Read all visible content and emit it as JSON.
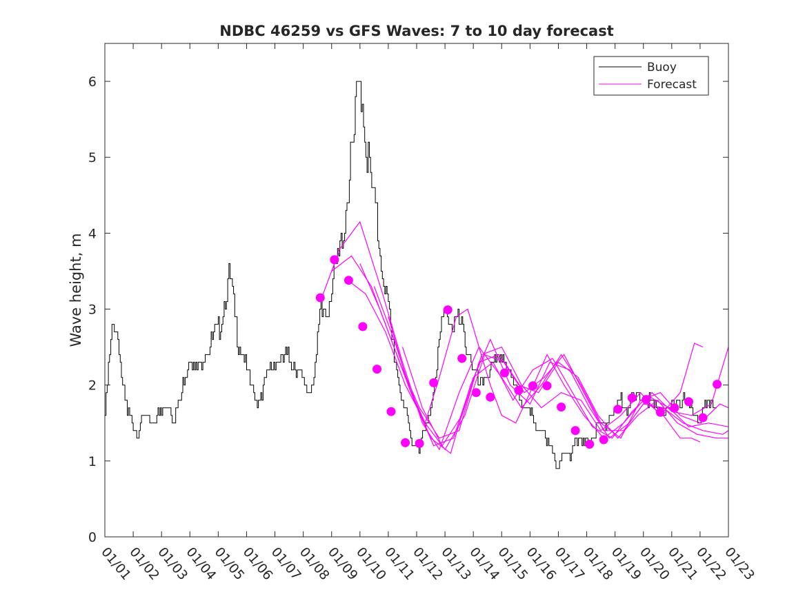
{
  "chart_data": {
    "type": "line",
    "title": "NDBC 46259 vs GFS Waves: 7 to 10 day forecast",
    "xlabel": "",
    "ylabel": "Wave height, m",
    "xlim": [
      0,
      22
    ],
    "ylim": [
      0,
      6.5
    ],
    "yticks": [
      0,
      1,
      2,
      3,
      4,
      5,
      6
    ],
    "xtick_labels": [
      "01/01",
      "01/02",
      "01/03",
      "01/04",
      "01/05",
      "01/06",
      "01/07",
      "01/08",
      "01/09",
      "01/10",
      "01/11",
      "01/12",
      "01/13",
      "01/14",
      "01/15",
      "01/16",
      "01/17",
      "01/18",
      "01/19",
      "01/20",
      "01/21",
      "01/22",
      "01/23"
    ],
    "legend": {
      "position": "top-right",
      "entries": [
        "Buoy",
        "Forecast"
      ]
    },
    "colors": {
      "buoy": "#000000",
      "forecast": "#ff00ff",
      "axes": "#262626"
    },
    "series": [
      {
        "name": "Buoy",
        "x": [
          0,
          0.1,
          0.2,
          0.35,
          0.5,
          0.65,
          0.8,
          1.0,
          1.2,
          1.4,
          1.6,
          1.8,
          2.0,
          2.2,
          2.4,
          2.6,
          2.8,
          3.0,
          3.2,
          3.4,
          3.6,
          3.8,
          4.0,
          4.1,
          4.2,
          4.3,
          4.4,
          4.5,
          4.6,
          4.8,
          5.0,
          5.2,
          5.4,
          5.6,
          5.8,
          6.0,
          6.2,
          6.4,
          6.6,
          6.8,
          7.0,
          7.2,
          7.4,
          7.6,
          7.8,
          8.0,
          8.2,
          8.4,
          8.6,
          8.8,
          8.9,
          9.0,
          9.1,
          9.2,
          9.4,
          9.6,
          9.8,
          10.0,
          10.2,
          10.4,
          10.6,
          10.8,
          11.0,
          11.2,
          11.4,
          11.6,
          11.8,
          12.0,
          12.2,
          12.4,
          12.6,
          12.8,
          13.0,
          13.2,
          13.4,
          13.6,
          13.8,
          14.0,
          14.2,
          14.4,
          14.6,
          14.8,
          15.0,
          15.2,
          15.4,
          15.6,
          15.8,
          16.0,
          16.2,
          16.4,
          16.6,
          16.8,
          17.0,
          17.2,
          17.4,
          17.6,
          17.8,
          18.0,
          18.2,
          18.4,
          18.6,
          18.8,
          19.0,
          19.2,
          19.4,
          19.6,
          19.8,
          20.0,
          20.2,
          20.4,
          20.6,
          20.8,
          21.0,
          21.2,
          21.4,
          21.6
        ],
        "values": [
          1.6,
          2.1,
          2.5,
          2.9,
          2.5,
          1.9,
          1.6,
          1.5,
          1.4,
          1.6,
          1.5,
          1.6,
          1.6,
          1.8,
          1.6,
          1.7,
          2.1,
          2.4,
          2.2,
          2.3,
          2.5,
          2.6,
          2.7,
          2.9,
          3.1,
          3.3,
          3.4,
          3.2,
          2.8,
          2.5,
          2.2,
          1.9,
          1.8,
          2.0,
          2.2,
          2.3,
          2.3,
          2.4,
          2.3,
          2.2,
          2.0,
          1.9,
          2.2,
          2.9,
          3.0,
          3.3,
          3.6,
          4.0,
          4.7,
          5.3,
          5.8,
          6.0,
          5.7,
          5.2,
          4.6,
          4.1,
          3.5,
          3.0,
          2.4,
          2.0,
          1.6,
          1.3,
          1.2,
          1.3,
          1.5,
          2.0,
          2.6,
          3.0,
          2.8,
          2.9,
          2.7,
          2.5,
          2.2,
          2.0,
          2.1,
          2.2,
          2.3,
          2.4,
          2.2,
          2.0,
          1.9,
          1.7,
          1.6,
          1.5,
          1.4,
          1.2,
          1.1,
          1.0,
          1.0,
          1.1,
          1.3,
          1.2,
          1.2,
          1.3,
          1.4,
          1.5,
          1.6,
          1.7,
          1.8,
          1.7,
          1.8,
          1.8,
          1.9,
          1.8,
          1.7,
          1.7,
          1.6,
          1.7,
          1.8,
          1.8,
          1.7,
          1.6,
          1.6,
          1.7,
          1.8,
          1.8
        ]
      },
      {
        "name": "Forecast",
        "x": [
          7.6,
          8.1,
          8.6,
          9.1,
          9.6,
          10.1,
          10.6,
          11.1,
          11.6,
          12.1,
          12.6,
          13.1,
          13.6,
          14.1,
          14.6,
          15.1,
          15.6,
          16.1,
          16.6,
          17.1,
          17.6,
          18.1,
          18.6,
          19.1,
          19.6,
          20.1,
          20.6,
          21.1,
          21.6
        ],
        "values": [
          3.15,
          3.65,
          3.38,
          2.77,
          2.21,
          1.65,
          1.24,
          1.23,
          2.03,
          2.99,
          2.35,
          1.9,
          1.84,
          2.16,
          1.93,
          1.99,
          1.99,
          1.71,
          1.4,
          1.22,
          1.28,
          1.68,
          1.83,
          1.81,
          1.64,
          1.7,
          1.78,
          1.57,
          2.01
        ]
      }
    ],
    "forecast_runs": [
      {
        "x": [
          7.6,
          8.3,
          9.0,
          9.8,
          10.5,
          11.2,
          11.8,
          12.5,
          13.2,
          14.0,
          14.7,
          15.4,
          16.1,
          16.8,
          17.5,
          18.2,
          18.9,
          19.6,
          20.3,
          21.0,
          21.7,
          22.0
        ],
        "values": [
          3.1,
          3.8,
          4.15,
          3.2,
          2.3,
          1.5,
          1.15,
          1.9,
          2.5,
          2.1,
          1.7,
          2.0,
          2.4,
          2.0,
          1.5,
          1.3,
          1.8,
          1.9,
          1.6,
          1.5,
          1.75,
          1.7
        ]
      },
      {
        "x": [
          8.0,
          8.7,
          9.4,
          10.1,
          10.8,
          11.5,
          12.2,
          12.9,
          13.6,
          14.3,
          15.0,
          15.7,
          16.4,
          17.1,
          17.8,
          18.5,
          19.2,
          19.9,
          20.6,
          21.3,
          22.0
        ],
        "values": [
          3.5,
          3.7,
          3.3,
          2.6,
          1.9,
          1.3,
          1.1,
          2.0,
          2.6,
          2.0,
          1.75,
          2.3,
          2.2,
          1.7,
          1.3,
          1.5,
          1.85,
          1.7,
          1.45,
          1.5,
          1.45
        ]
      },
      {
        "x": [
          8.5,
          9.2,
          9.9,
          10.6,
          11.3,
          12.0,
          12.7,
          13.4,
          14.1,
          14.8,
          15.5,
          16.2,
          16.9,
          17.6,
          18.3,
          19.0,
          19.7,
          20.4,
          21.1,
          21.8,
          22.0
        ],
        "values": [
          3.4,
          3.2,
          2.7,
          2.0,
          1.5,
          1.15,
          1.6,
          2.4,
          2.3,
          1.9,
          2.1,
          2.4,
          1.9,
          1.4,
          1.4,
          1.75,
          1.7,
          1.5,
          1.4,
          1.35,
          1.4
        ]
      },
      {
        "x": [
          9.0,
          9.7,
          10.4,
          11.1,
          11.8,
          12.5,
          13.2,
          13.9,
          14.6,
          15.3,
          16.0,
          16.7,
          17.4,
          18.1,
          18.8,
          19.5,
          20.2,
          20.9,
          21.6,
          22.0
        ],
        "values": [
          3.6,
          3.0,
          2.3,
          1.7,
          1.3,
          1.4,
          2.3,
          2.4,
          2.0,
          1.9,
          2.3,
          2.1,
          1.6,
          1.3,
          1.6,
          1.8,
          1.5,
          1.35,
          1.3,
          1.3
        ]
      },
      {
        "x": [
          9.5,
          10.2,
          10.9,
          11.6,
          12.3,
          13.0,
          13.7,
          14.4,
          15.1,
          15.8,
          16.5,
          17.2,
          17.9,
          18.6,
          19.3,
          20.0,
          20.7,
          21.4,
          22.0
        ],
        "values": [
          3.3,
          2.6,
          1.8,
          1.2,
          1.3,
          2.1,
          2.3,
          1.8,
          2.2,
          2.35,
          1.9,
          1.45,
          1.3,
          1.65,
          1.9,
          1.65,
          1.6,
          1.75,
          2.5
        ]
      },
      {
        "x": [
          10.0,
          10.7,
          11.3,
          11.8,
          12.4,
          12.8,
          13.2,
          13.6,
          14.0,
          14.5,
          15.0,
          15.6,
          16.2,
          16.9,
          17.6,
          18.3,
          19.0,
          19.7,
          20.3,
          20.7,
          21.0
        ],
        "values": [
          2.9,
          2.0,
          1.5,
          2.1,
          2.9,
          3.0,
          2.5,
          2.0,
          1.6,
          1.5,
          1.9,
          2.4,
          2.0,
          1.6,
          1.3,
          1.5,
          1.8,
          1.6,
          1.3,
          1.3,
          1.25
        ]
      },
      {
        "x": [
          10.5,
          11.2,
          11.9,
          12.6,
          13.3,
          14.0,
          14.7,
          15.4,
          16.1,
          16.8,
          17.5,
          18.2,
          18.9,
          19.6,
          20.3,
          20.8,
          21.1
        ],
        "values": [
          2.5,
          1.7,
          1.2,
          1.6,
          2.4,
          2.5,
          2.0,
          1.7,
          1.9,
          1.8,
          1.4,
          1.6,
          1.9,
          1.6,
          1.9,
          2.55,
          2.5
        ]
      }
    ]
  }
}
